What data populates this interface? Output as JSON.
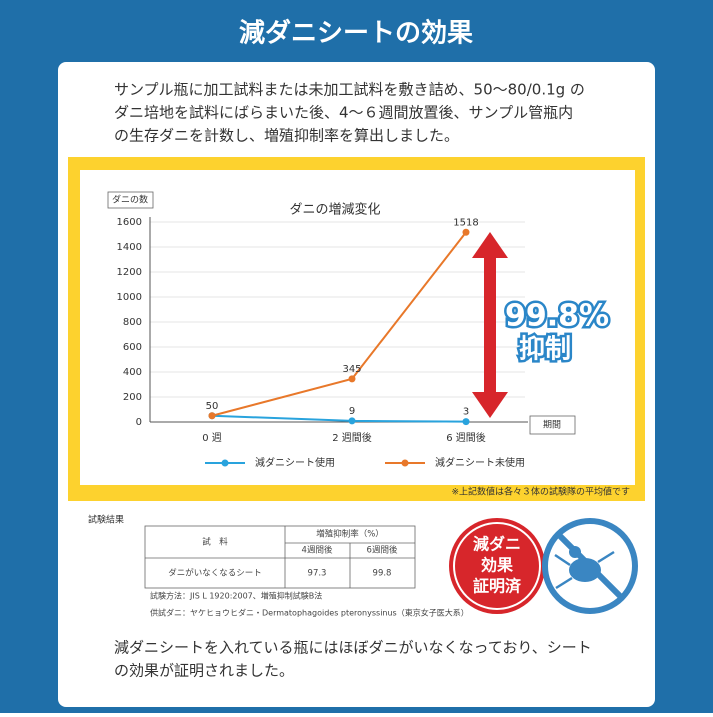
{
  "header": {
    "title": "減ダニシートの効果"
  },
  "intro": [
    "サンプル瓶に加工試料または未加工試料を敷き詰め、50〜80/0.1g の",
    "ダニ培地を試料にばらまいた後、4〜６週間放置後、サンプル管瓶内",
    "の生存ダニを計数し、増殖抑制率を算出しました。"
  ],
  "chart_data": {
    "type": "line",
    "title": "ダニの増減変化",
    "y_label": "ダニの数",
    "x_label": "期間",
    "categories": [
      "0 週",
      "2 週間後",
      "6 週間後"
    ],
    "series": [
      {
        "name": "減ダニシート使用",
        "color": "#29a3dd",
        "values": [
          50,
          9,
          3
        ]
      },
      {
        "name": "減ダニシート未使用",
        "color": "#e8782a",
        "values": [
          50,
          345,
          1518
        ]
      }
    ],
    "ylim": [
      0,
      1600
    ],
    "yticks": [
      0,
      200,
      400,
      600,
      800,
      1000,
      1200,
      1400,
      1600
    ],
    "grid": true,
    "annotation": {
      "rate": "99.8%",
      "text": "抑制"
    },
    "note": "※上記数値は各々３体の試験隊の平均値です"
  },
  "results": {
    "title": "試験結果",
    "table": {
      "sample_header": "試　料",
      "rate_header": "増殖抑制率（%）",
      "columns": [
        "4週間後",
        "6週間後"
      ],
      "rows": [
        [
          "ダニがいなくなるシート",
          "97.3",
          "99.8"
        ]
      ]
    },
    "method": "試験方法：JIS L 1920:2007、増殖抑制試験B法",
    "mite": "供試ダニ：ヤケヒョウヒダニ・Dermatophagoides pteronyssinus（東京女子医大系）"
  },
  "stamp": [
    "減ダニ",
    "効果",
    "証明済"
  ],
  "conclusion": [
    "減ダニシートを入れている瓶にはほぼダニがいなくなっており、シート",
    "の効果が証明されました。"
  ]
}
